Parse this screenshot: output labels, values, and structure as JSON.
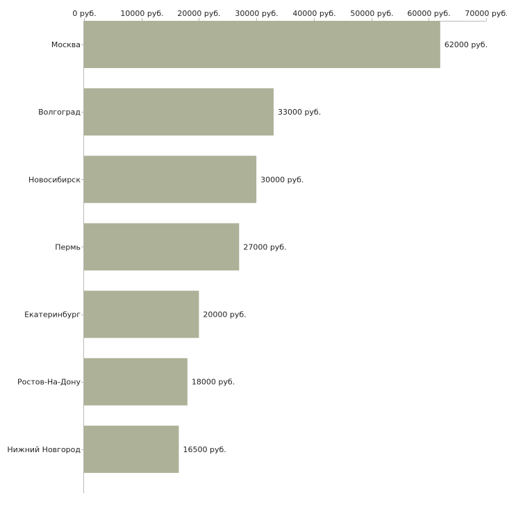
{
  "chart_data": {
    "type": "bar",
    "orientation": "horizontal",
    "title": "",
    "xlabel": "",
    "ylabel": "",
    "categories": [
      "Москва",
      "Волгоград",
      "Новосибирск",
      "Пермь",
      "Екатеринбург",
      "Ростов-На-Дону",
      "Нижний Новгород"
    ],
    "values": [
      62000,
      33000,
      30000,
      27000,
      20000,
      18000,
      16500
    ],
    "value_labels": [
      "62000 руб.",
      "33000 руб.",
      "30000 руб.",
      "27000 руб.",
      "20000 руб.",
      "18000 руб.",
      "16500 руб."
    ],
    "xlim": [
      0,
      70000
    ],
    "x_ticks": [
      0,
      10000,
      20000,
      30000,
      40000,
      50000,
      60000,
      70000
    ],
    "x_tick_labels": [
      "0 руб.",
      "10000 руб.",
      "20000 руб.",
      "30000 руб.",
      "40000 руб.",
      "50000 руб.",
      "60000 руб.",
      "70000 руб."
    ],
    "axis_position": "top",
    "grid": false,
    "legend": "none",
    "colors": {
      "bar": "#adb197",
      "axis": "#b8b8b8",
      "text": "#222222"
    }
  }
}
